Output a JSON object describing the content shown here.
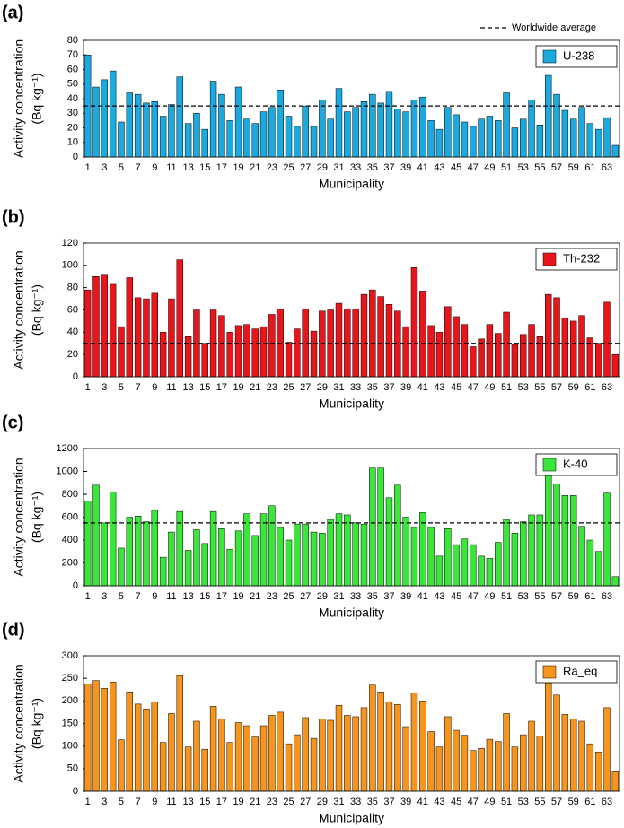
{
  "chart_data": [
    {
      "type": "bar",
      "panel": "(a)",
      "ylabel": [
        "Activity concentration",
        "(Bq kg⁻¹)"
      ],
      "xlabel": "Municipality",
      "categories": [
        "1",
        null,
        "3",
        null,
        "5",
        null,
        "7",
        null,
        "9",
        null,
        "11",
        null,
        "13",
        null,
        "15",
        null,
        "17",
        null,
        "19",
        null,
        "21",
        null,
        "23",
        null,
        "25",
        null,
        "27",
        null,
        "29",
        null,
        "31",
        null,
        "33",
        null,
        "35",
        null,
        "37",
        null,
        "39",
        null,
        "41",
        null,
        "43",
        null,
        "45",
        null,
        "47",
        null,
        "49",
        null,
        "51",
        null,
        "53",
        null,
        "55",
        null,
        "57",
        null,
        "59",
        null,
        "61",
        null,
        "63",
        null
      ],
      "series": [
        {
          "name": "U-238",
          "color": "#1ba9e0",
          "values": [
            70,
            48,
            53,
            59,
            24,
            44,
            43,
            37,
            38,
            28,
            36,
            55,
            23,
            30,
            19,
            52,
            43,
            25,
            48,
            26,
            23,
            31,
            34,
            46,
            28,
            21,
            35,
            21,
            39,
            26,
            47,
            31,
            34,
            38,
            43,
            37,
            45,
            33,
            31,
            39,
            41,
            25,
            19,
            34,
            29,
            24,
            21,
            26,
            28,
            25,
            44,
            20,
            26,
            39,
            22,
            56,
            43,
            32,
            26,
            34,
            23,
            19,
            27,
            8
          ]
        }
      ],
      "ylim": [
        0,
        80
      ],
      "yticks": [
        0,
        10,
        20,
        30,
        40,
        50,
        60,
        70,
        80
      ],
      "reference_line": 35,
      "reference_label": "Worldwide average"
    },
    {
      "type": "bar",
      "panel": "(b)",
      "ylabel": [
        "Activity concentration",
        "(Bq kg⁻¹)"
      ],
      "xlabel": "Municipality",
      "categories": [
        "1",
        null,
        "3",
        null,
        "5",
        null,
        "7",
        null,
        "9",
        null,
        "11",
        null,
        "13",
        null,
        "15",
        null,
        "17",
        null,
        "19",
        null,
        "21",
        null,
        "23",
        null,
        "25",
        null,
        "27",
        null,
        "29",
        null,
        "31",
        null,
        "33",
        null,
        "35",
        null,
        "37",
        null,
        "39",
        null,
        "41",
        null,
        "43",
        null,
        "45",
        null,
        "47",
        null,
        "49",
        null,
        "51",
        null,
        "53",
        null,
        "55",
        null,
        "57",
        null,
        "59",
        null,
        "61",
        null,
        "63",
        null
      ],
      "series": [
        {
          "name": "Th-232",
          "color": "#e8161b",
          "values": [
            78,
            90,
            92,
            83,
            45,
            89,
            71,
            70,
            75,
            40,
            70,
            105,
            36,
            60,
            30,
            60,
            55,
            40,
            46,
            47,
            43,
            45,
            56,
            61,
            31,
            43,
            61,
            41,
            59,
            60,
            66,
            61,
            61,
            74,
            78,
            72,
            65,
            59,
            45,
            98,
            77,
            46,
            40,
            63,
            54,
            47,
            27,
            34,
            47,
            39,
            58,
            29,
            38,
            47,
            36,
            74,
            71,
            53,
            50,
            55,
            35,
            30,
            67,
            20
          ]
        }
      ],
      "ylim": [
        0,
        120
      ],
      "yticks": [
        0,
        20,
        40,
        60,
        80,
        100,
        120
      ],
      "reference_line": 30
    },
    {
      "type": "bar",
      "panel": "(c)",
      "ylabel": [
        "Activity concentration",
        "(Bq kg⁻¹)"
      ],
      "xlabel": "Municipality",
      "categories": [
        "1",
        null,
        "3",
        null,
        "5",
        null,
        "7",
        null,
        "9",
        null,
        "11",
        null,
        "13",
        null,
        "15",
        null,
        "17",
        null,
        "19",
        null,
        "21",
        null,
        "23",
        null,
        "25",
        null,
        "27",
        null,
        "29",
        null,
        "31",
        null,
        "33",
        null,
        "35",
        null,
        "37",
        null,
        "39",
        null,
        "41",
        null,
        "43",
        null,
        "45",
        null,
        "47",
        null,
        "49",
        null,
        "51",
        null,
        "53",
        null,
        "55",
        null,
        "57",
        null,
        "59",
        null,
        "61",
        null,
        "63",
        null
      ],
      "series": [
        {
          "name": "K-40",
          "color": "#39e639",
          "values": [
            740,
            880,
            550,
            820,
            330,
            600,
            610,
            560,
            660,
            250,
            470,
            650,
            310,
            490,
            370,
            650,
            500,
            320,
            480,
            630,
            440,
            630,
            700,
            510,
            400,
            540,
            540,
            470,
            460,
            580,
            630,
            620,
            550,
            540,
            1030,
            1030,
            770,
            880,
            600,
            510,
            640,
            510,
            260,
            500,
            360,
            410,
            360,
            260,
            240,
            380,
            580,
            460,
            560,
            620,
            620,
            1010,
            890,
            790,
            790,
            520,
            400,
            300,
            810,
            80
          ]
        }
      ],
      "ylim": [
        0,
        1200
      ],
      "yticks": [
        0,
        200,
        400,
        600,
        800,
        1000,
        1200
      ],
      "reference_line": 550
    },
    {
      "type": "bar",
      "panel": "(d)",
      "ylabel": [
        "Activity concentration",
        "(Bq kg⁻¹)"
      ],
      "xlabel": "Municipality",
      "categories": [
        "1",
        null,
        "3",
        null,
        "5",
        null,
        "7",
        null,
        "9",
        null,
        "11",
        null,
        "13",
        null,
        "15",
        null,
        "17",
        null,
        "19",
        null,
        "21",
        null,
        "23",
        null,
        "25",
        null,
        "27",
        null,
        "29",
        null,
        "31",
        null,
        "33",
        null,
        "35",
        null,
        "37",
        null,
        "39",
        null,
        "41",
        null,
        "43",
        null,
        "45",
        null,
        "47",
        null,
        "49",
        null,
        "51",
        null,
        "53",
        null,
        "55",
        null,
        "57",
        null,
        "59",
        null,
        "61",
        null,
        "63",
        null
      ],
      "series": [
        {
          "name": "Ra_eq",
          "color": "#f7941d",
          "values": [
            237,
            245,
            228,
            242,
            114,
            220,
            193,
            182,
            198,
            108,
            172,
            256,
            98,
            155,
            93,
            188,
            160,
            108,
            152,
            145,
            120,
            145,
            168,
            175,
            105,
            125,
            163,
            117,
            160,
            157,
            190,
            168,
            165,
            185,
            235,
            220,
            198,
            192,
            143,
            218,
            200,
            132,
            98,
            165,
            135,
            124,
            90,
            95,
            115,
            110,
            172,
            98,
            125,
            155,
            122,
            240,
            213,
            170,
            160,
            155,
            105,
            87,
            185,
            43
          ]
        }
      ],
      "ylim": [
        0,
        300
      ],
      "yticks": [
        0,
        50,
        100,
        150,
        200,
        250,
        300
      ]
    }
  ]
}
